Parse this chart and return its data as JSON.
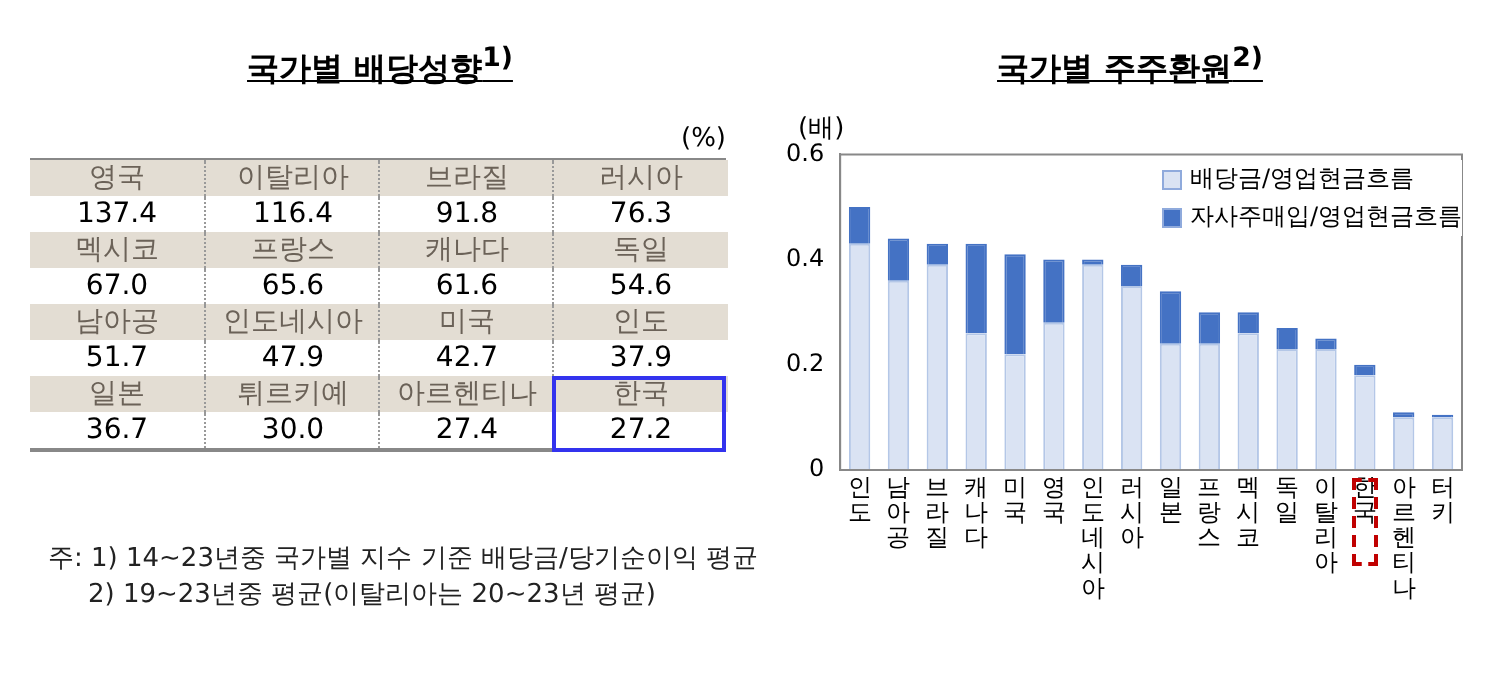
{
  "chart_data": [
    {
      "type": "other",
      "title": "국가별 배당성향$^{1)}$",
      "ylabel": "(%)",
      "categories": [
        "영국",
        "이탈리아",
        "브라질",
        "러시아",
        "멕시코",
        "프랑스",
        "캐나다",
        "독일",
        "남아공",
        "인도네시아",
        "미국",
        "인도",
        "일본",
        "튀르키예",
        "아르헨티나",
        "한국"
      ],
      "values": [
        137.4,
        116.4,
        91.8,
        76.3,
        67.0,
        65.6,
        61.6,
        54.6,
        51.7,
        47.9,
        42.7,
        37.9,
        36.7,
        30.0,
        27.4,
        27.2
      ],
      "value_labels": [
        "137.4",
        "116.4",
        "91.8",
        "76.3",
        "67.0",
        "65.6",
        "61.6",
        "54.6",
        "51.7",
        "47.9",
        "42.7",
        "37.9",
        "36.7",
        "30.0",
        "27.4",
        "27.2"
      ],
      "annotations": [
        "주: 1) 14~23년중 국가별 지수 기준 배당금/당기순이익 평균",
        "2) 19~23년중 평균(이탈리아는 20~23년 평균)"
      ]
    },
    {
      "type": "bar",
      "title": "국가별 주주환원$^{2)}$",
      "ylabel": "(배)",
      "stacked": true,
      "legend": "top right",
      "categories": [
        "인도",
        "남아공",
        "브라질",
        "캐나다",
        "미국",
        "영국",
        "인도네시아",
        "러시아",
        "일본",
        "프랑스",
        "멕시코",
        "독일",
        "이탈리아",
        "한국",
        "아르헨티나",
        "터키"
      ],
      "series": [
        {
          "name": "배당금/영업현금흐름",
          "color": "#dae3f3",
          "values": [
            0.43,
            0.36,
            0.39,
            0.26,
            0.22,
            0.28,
            0.39,
            0.35,
            0.24,
            0.24,
            0.26,
            0.23,
            0.23,
            0.18,
            0.1,
            0.1
          ]
        },
        {
          "name": "자사주매입/영업현금흐름",
          "color": "#4472c4",
          "values": [
            0.07,
            0.08,
            0.04,
            0.17,
            0.19,
            0.12,
            0.01,
            0.04,
            0.1,
            0.06,
            0.04,
            0.04,
            0.02,
            0.02,
            0.01,
            0.005
          ]
        }
      ],
      "ylim": [
        0,
        0.6
      ],
      "yticks": [
        0,
        0.2,
        0.4,
        0.6
      ],
      "grid": false
    }
  ]
}
